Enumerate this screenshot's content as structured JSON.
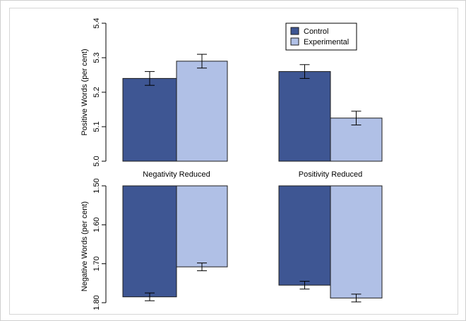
{
  "chart_data": [
    {
      "type": "bar",
      "categories": [
        "Negativity Reduced",
        "Positivity Reduced"
      ],
      "ylabel": "Positive Words (per cent)",
      "ylim": [
        5.0,
        5.4
      ],
      "yticks": [
        "5.0",
        "5.1",
        "5.2",
        "5.3",
        "5.4"
      ],
      "series": [
        {
          "name": "Control",
          "values": [
            5.24,
            5.26
          ],
          "errors": [
            0.02,
            0.02
          ]
        },
        {
          "name": "Experimental",
          "values": [
            5.29,
            5.125
          ],
          "errors": [
            0.02,
            0.02
          ]
        }
      ],
      "legend_placement": "top-right",
      "grid": false
    },
    {
      "type": "bar",
      "categories": [
        "Negativity Reduced",
        "Positivity Reduced"
      ],
      "ylabel": "Negative Words (per cent)",
      "ylim": [
        1.5,
        1.8
      ],
      "y_inverted": true,
      "yticks": [
        "1.50",
        "1.60",
        "1.70",
        "1.80"
      ],
      "series": [
        {
          "name": "Control",
          "values": [
            1.785,
            1.755
          ],
          "errors": [
            0.01,
            0.01
          ]
        },
        {
          "name": "Experimental",
          "values": [
            1.708,
            1.788
          ],
          "errors": [
            0.01,
            0.01
          ]
        }
      ],
      "grid": false
    }
  ],
  "colors": {
    "control": "#3e5693",
    "experimental": "#b0c0e6",
    "outline": "#1c1c1c"
  },
  "legend": {
    "items": [
      "Control",
      "Experimental"
    ]
  }
}
